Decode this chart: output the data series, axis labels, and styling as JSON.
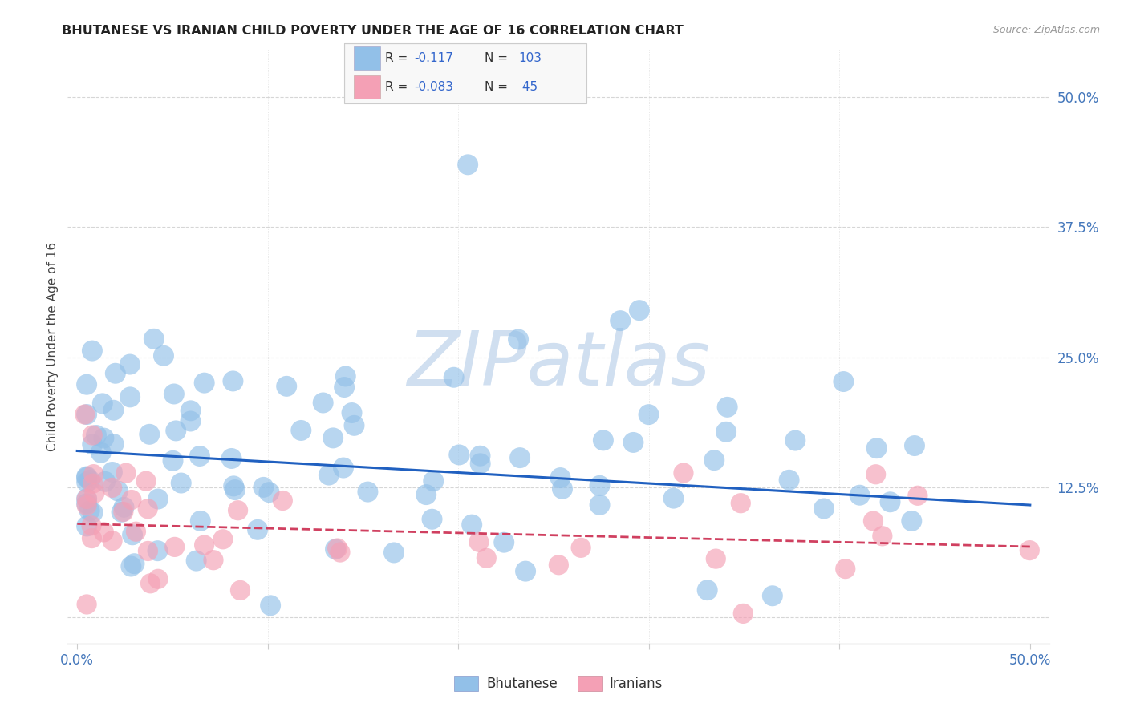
{
  "title": "BHUTANESE VS IRANIAN CHILD POVERTY UNDER THE AGE OF 16 CORRELATION CHART",
  "source": "Source: ZipAtlas.com",
  "ylabel": "Child Poverty Under the Age of 16",
  "blue_color": "#92C0E8",
  "pink_color": "#F4A0B5",
  "blue_line_color": "#2060C0",
  "pink_line_color": "#D04060",
  "blue_marker_edge": "#6090C0",
  "pink_marker_edge": "#D07090",
  "watermark_color": "#D0DFF0",
  "grid_color": "#CCCCCC",
  "tick_label_color": "#4477BB",
  "title_color": "#222222",
  "source_color": "#999999",
  "legend_box_color": "#F5F5F5",
  "legend_text_dark": "#333333",
  "legend_text_blue": "#3366CC"
}
